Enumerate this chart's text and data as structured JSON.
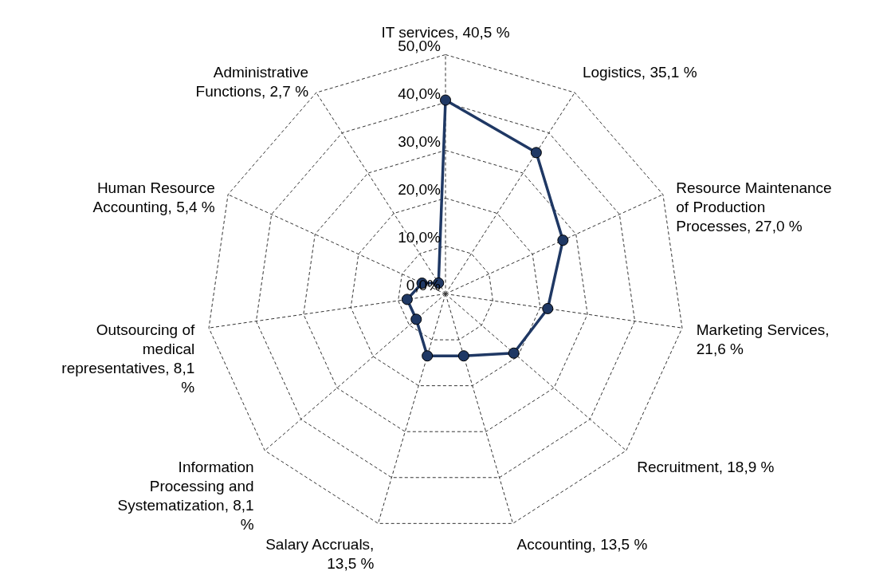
{
  "chart_data": {
    "type": "radar",
    "categories": [
      "IT services, 40,5 %",
      "Logistics, 35,1 %",
      "Resource Maintenance of Production Processes, 27,0 %",
      "Marketing Services, 21,6 %",
      "Recruitment, 18,9 %",
      "Accounting, 13,5 %",
      "Salary Accruals, 13,5 %",
      "Information Processing and Systematization, 8,1 %",
      "Outsourcing of medical representatives, 8,1 %",
      "Human Resource Accounting, 5,4 %",
      "Administrative Functions, 2,7 %"
    ],
    "series": [
      {
        "color": "#1f3864",
        "values": [
          40.5,
          35.1,
          27.0,
          21.6,
          18.9,
          13.5,
          13.5,
          8.1,
          8.1,
          5.4,
          2.7
        ]
      }
    ],
    "ylim": [
      0,
      50
    ],
    "yticks": [
      {
        "value": 0,
        "label": "0,0%"
      },
      {
        "value": 10,
        "label": "10,0%"
      },
      {
        "value": 20,
        "label": "20,0%"
      },
      {
        "value": 30,
        "label": "30,0%"
      },
      {
        "value": 40,
        "label": "40,0%"
      },
      {
        "value": 50,
        "label": "50,0%"
      }
    ],
    "grid": true,
    "marker": "circle",
    "line_style": "solid"
  }
}
